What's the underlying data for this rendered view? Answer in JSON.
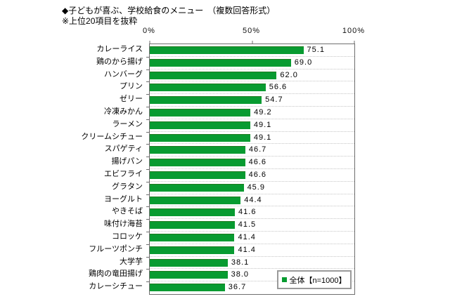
{
  "header": {
    "title": "◆子どもが喜ぶ、学校給食のメニュー　（複数回答形式）",
    "subtitle": "※上位20項目を抜粋"
  },
  "chart_data": {
    "type": "bar",
    "orientation": "horizontal",
    "title": "◆子どもが喜ぶ、学校給食のメニュー　（複数回答形式）",
    "note": "※上位20項目を抜粋",
    "categories": [
      "カレーライス",
      "鶏のから揚げ",
      "ハンバーグ",
      "プリン",
      "ゼリー",
      "冷凍みかん",
      "ラーメン",
      "クリームシチュー",
      "スパゲティ",
      "揚げパン",
      "エビフライ",
      "グラタン",
      "ヨーグルト",
      "やきそば",
      "味付け海苔",
      "コロッケ",
      "フルーツポンチ",
      "大学芋",
      "鶏肉の竜田揚げ",
      "カレーシチュー"
    ],
    "values": [
      75.1,
      69.0,
      62.0,
      56.6,
      54.7,
      49.2,
      49.1,
      49.1,
      46.7,
      46.6,
      46.6,
      45.9,
      44.4,
      41.6,
      41.5,
      41.4,
      41.4,
      38.1,
      38.0,
      36.7
    ],
    "xlabel": "",
    "ylabel": "",
    "xlim": [
      0,
      100
    ],
    "x_ticks": [
      0,
      50,
      100
    ],
    "x_tick_labels": [
      "0%",
      "50%",
      "100%"
    ],
    "grid": "dotted horizontal row separators",
    "bar_color": "#089b31",
    "legend": {
      "label": "全体【n=1000】",
      "position": "inside-bottom-right",
      "marker_color": "#089b31"
    }
  }
}
